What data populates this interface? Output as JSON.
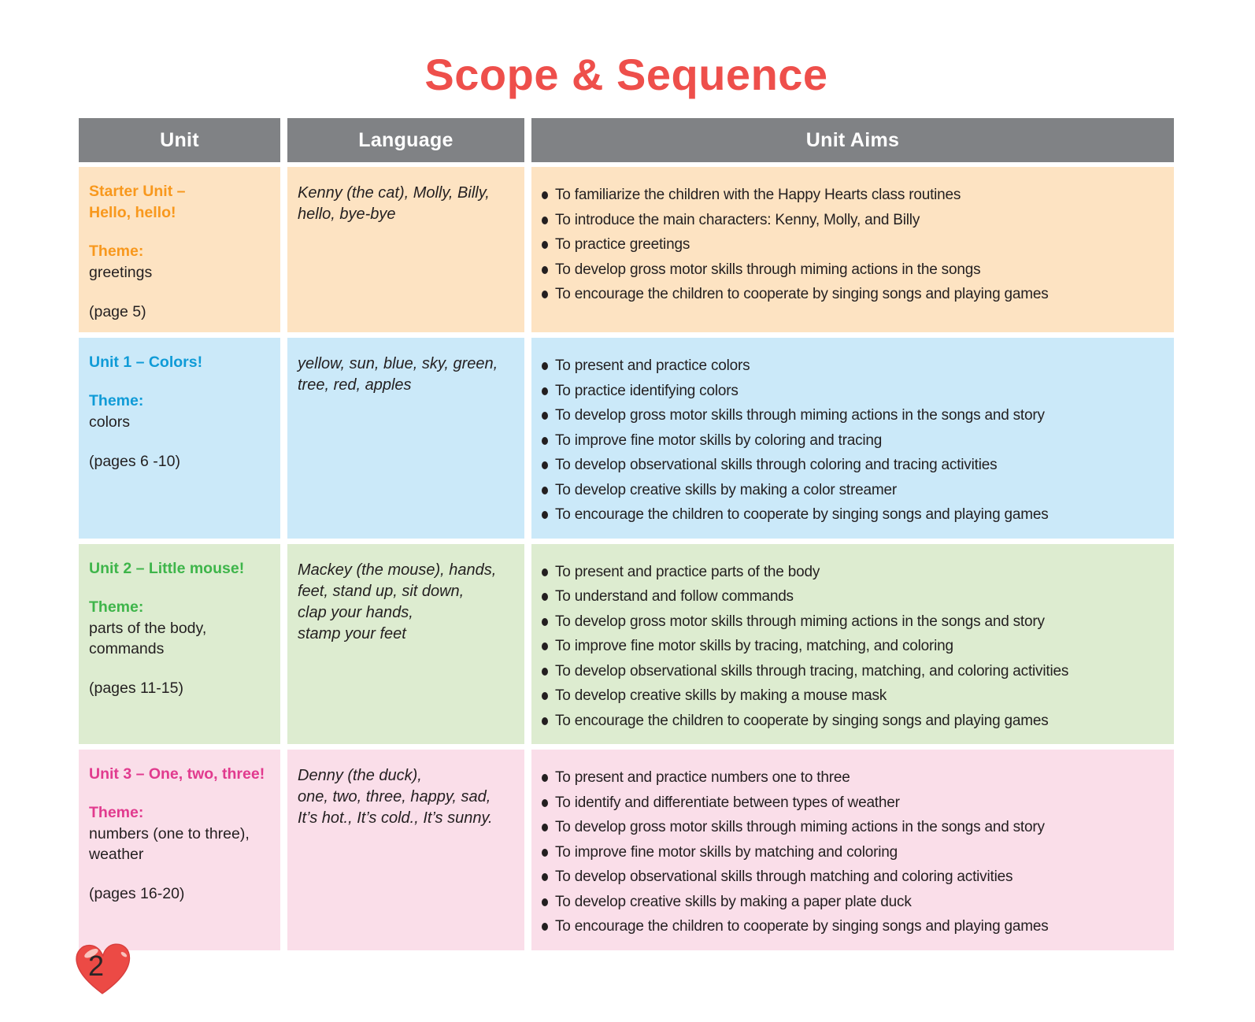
{
  "page": {
    "title": "Scope & Sequence",
    "title_color": "#ee4f4b",
    "page_number": "2",
    "heart_color": "#ec4a45"
  },
  "table": {
    "header": {
      "bg": "#808285",
      "labels": [
        "Unit",
        "Language",
        "Unit Aims"
      ]
    },
    "rows": [
      {
        "name": "starter-unit",
        "bg": "#fde3c2",
        "accent": "#f8981d",
        "unit_title_lines": [
          "Starter Unit –",
          "Hello, hello!"
        ],
        "theme_label": "Theme:",
        "theme_lines": [
          "greetings"
        ],
        "pages": "(page 5)",
        "language_lines": [
          "Kenny (the cat), Molly, Billy,",
          "hello, bye-bye"
        ],
        "aims": [
          "To familiarize the children with the Happy Hearts class routines",
          "To introduce the main characters: Kenny, Molly, and Billy",
          "To practice greetings",
          "To develop gross motor skills through miming actions in the songs",
          "To encourage the children to cooperate by singing songs and playing games"
        ]
      },
      {
        "name": "unit-1-colors",
        "bg": "#cbe9f9",
        "accent": "#0f9bd7",
        "unit_title_lines": [
          "Unit 1 – Colors!"
        ],
        "theme_label": "Theme:",
        "theme_lines": [
          "colors"
        ],
        "pages": "(pages 6 -10)",
        "language_lines": [
          "yellow, sun, blue, sky, green,",
          "tree, red, apples"
        ],
        "aims": [
          "To present and practice colors",
          "To practice identifying colors",
          "To develop gross motor skills through miming actions in the songs and story",
          "To improve fine motor skills by coloring and tracing",
          "To develop observational skills through coloring and tracing activities",
          "To develop creative skills by making a color streamer",
          "To encourage the children to cooperate by singing songs and playing games"
        ]
      },
      {
        "name": "unit-2-little-mouse",
        "bg": "#ddecd0",
        "accent": "#3eb54a",
        "unit_title_lines": [
          "Unit 2 – Little mouse!"
        ],
        "theme_label": "Theme:",
        "theme_lines": [
          "parts of the body,",
          "commands"
        ],
        "pages": "(pages 11-15)",
        "language_lines": [
          "Mackey (the mouse), hands,",
          "feet, stand up, sit down,",
          "clap your hands,",
          "stamp your feet"
        ],
        "aims": [
          "To present and practice parts of the body",
          "To understand and follow commands",
          "To develop gross motor skills through miming actions in the songs and story",
          "To improve fine motor skills by tracing, matching, and coloring",
          "To develop observational skills through tracing, matching, and coloring activities",
          "To develop creative skills by making a mouse mask",
          "To encourage the children to cooperate by singing songs and playing games"
        ]
      },
      {
        "name": "unit-3-one-two-three",
        "bg": "#fadee9",
        "accent": "#e13a8e",
        "unit_title_lines": [
          "Unit 3 – One, two, three!"
        ],
        "theme_label": "Theme:",
        "theme_lines": [
          "numbers (one to three),",
          "weather"
        ],
        "pages": "(pages 16-20)",
        "language_lines": [
          "Denny (the duck),",
          "one, two, three, happy, sad,",
          "It’s hot., It’s cold., It’s sunny."
        ],
        "aims": [
          "To present and practice numbers one to three",
          "To identify and differentiate between types of weather",
          "To develop gross motor skills through miming actions in the songs and story",
          "To improve fine motor skills by matching and coloring",
          "To develop observational skills through matching and coloring activities",
          "To develop creative skills by making a paper plate duck",
          "To encourage the children to cooperate by singing songs and playing games"
        ]
      }
    ]
  }
}
